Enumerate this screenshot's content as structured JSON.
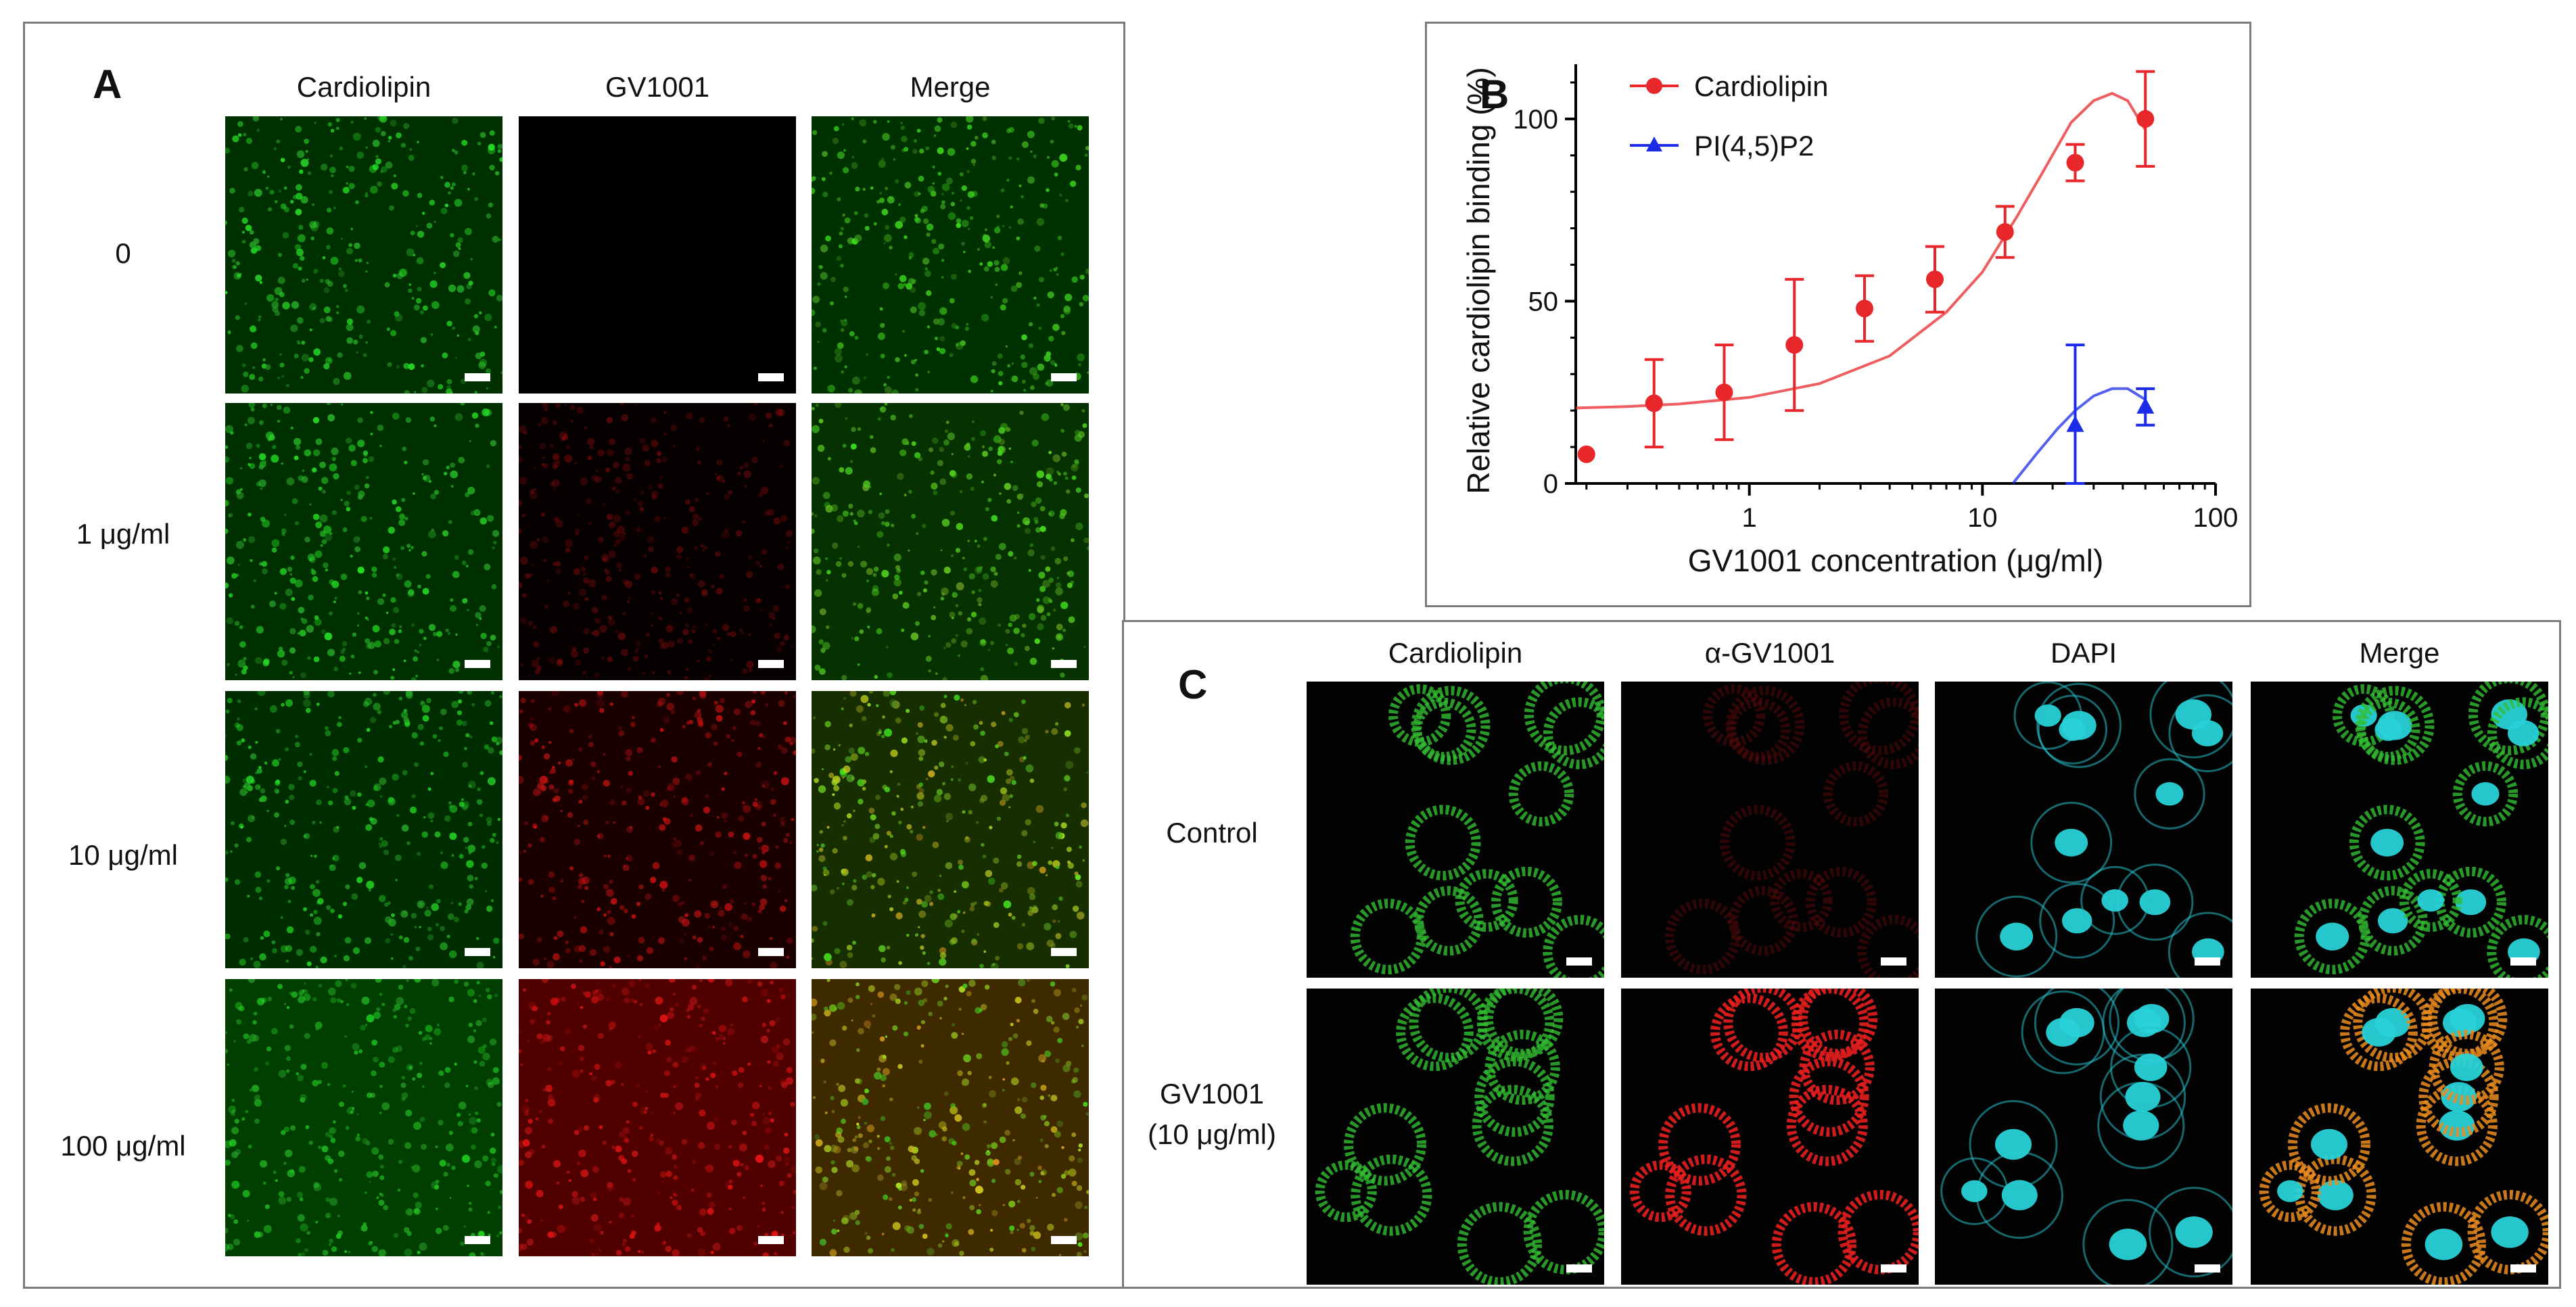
{
  "panel_a": {
    "label": "A",
    "columns": [
      "Cardiolipin",
      "GV1001",
      "Merge"
    ],
    "rows": [
      {
        "label": "0",
        "cardiolipin_intensity": 0.85,
        "gv1001_intensity": 0.0
      },
      {
        "label": "1 μg/ml",
        "cardiolipin_intensity": 0.85,
        "gv1001_intensity": 0.2
      },
      {
        "label": "10 μg/ml",
        "cardiolipin_intensity": 0.75,
        "gv1001_intensity": 0.75
      },
      {
        "label": "100 μg/ml",
        "cardiolipin_intensity": 0.6,
        "gv1001_intensity": 0.9
      }
    ]
  },
  "panel_b": {
    "label": "B",
    "chart_data": {
      "type": "scatter",
      "xlabel": "GV1001 concentration (μg/ml)",
      "ylabel": "Relative cardiolipin binding (%)",
      "x_scale": "log",
      "xlim": [
        0.18,
        100
      ],
      "ylim": [
        0,
        115
      ],
      "x_ticks": [
        "1",
        "10",
        "100"
      ],
      "y_ticks": [
        "0",
        "50",
        "100"
      ],
      "legend_position": "top-left",
      "series": [
        {
          "name": "Cardiolipin",
          "color": "#e8272a",
          "marker": "circle",
          "x": [
            0.2,
            0.39,
            0.78,
            1.56,
            3.12,
            6.25,
            12.5,
            25,
            50
          ],
          "y": [
            8,
            22,
            25,
            38,
            48,
            56,
            69,
            88,
            100
          ],
          "error": [
            0,
            12,
            13,
            18,
            9,
            9,
            7,
            5,
            13
          ],
          "fit_x": [
            0.18,
            0.3,
            0.5,
            1,
            2,
            4,
            7,
            10,
            14,
            18,
            24,
            30,
            36,
            42,
            50
          ],
          "fit_y": [
            20.7,
            21.1,
            21.8,
            23.6,
            27.4,
            35,
            47,
            58,
            73,
            85,
            99,
            105,
            107,
            105,
            97
          ]
        },
        {
          "name": "PI(4,5)P2",
          "color": "#1a2ce8",
          "marker": "triangle",
          "x": [
            25,
            50
          ],
          "y": [
            16,
            21
          ],
          "error": [
            22,
            5
          ],
          "fit_x": [
            13.5,
            17,
            21,
            25,
            30,
            36,
            42,
            50
          ],
          "fit_y": [
            0,
            8,
            15,
            20,
            24,
            26,
            26,
            23
          ]
        }
      ]
    }
  },
  "panel_c": {
    "label": "C",
    "columns": [
      "Cardiolipin",
      "α-GV1001",
      "DAPI",
      "Merge"
    ],
    "rows": [
      {
        "label_lines": [
          "Control"
        ]
      },
      {
        "label_lines": [
          "GV1001",
          "(10 μg/ml)"
        ]
      }
    ]
  }
}
